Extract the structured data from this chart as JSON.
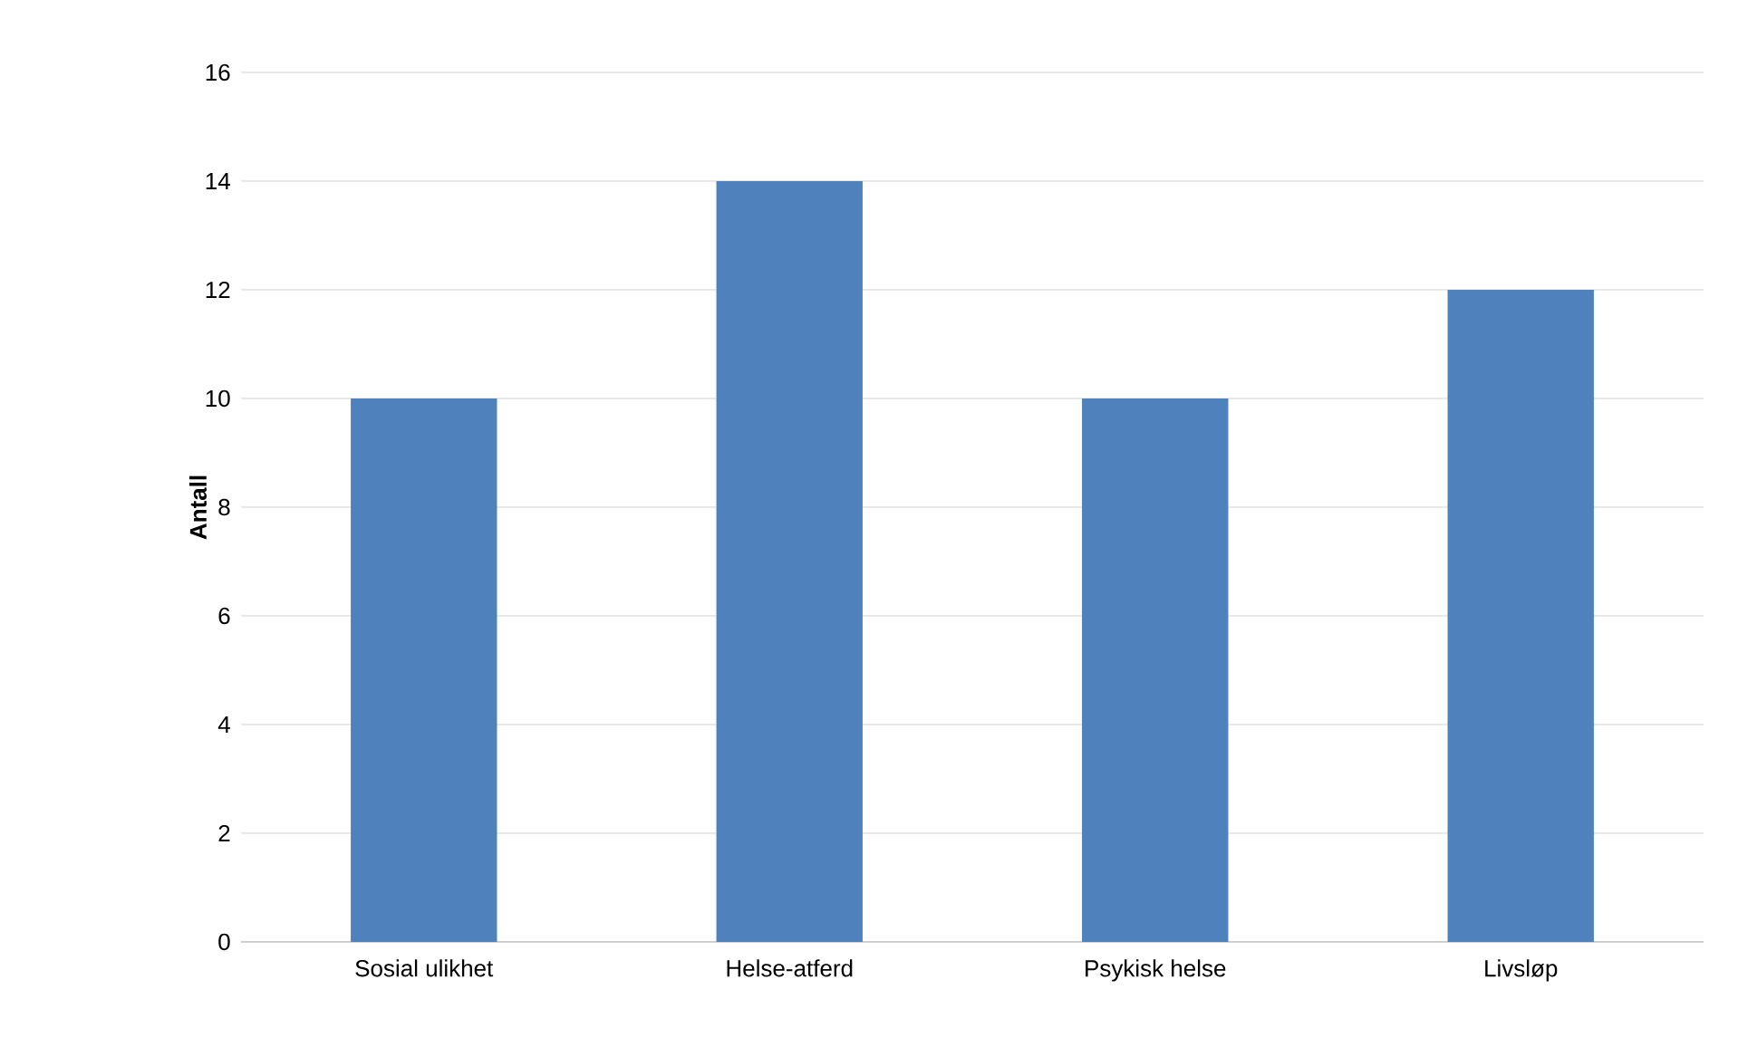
{
  "chart_data": {
    "type": "bar",
    "ylabel": "Antall",
    "categories": [
      "Sosial ulikhet",
      "Helse-atferd",
      "Psykisk helse",
      "Livsløp"
    ],
    "values": [
      10,
      14,
      10,
      12
    ],
    "color": "#4f81bd",
    "ylim": [
      0,
      16
    ],
    "yticks": [
      0,
      2,
      4,
      6,
      8,
      10,
      12,
      14,
      16
    ],
    "grid": "y"
  }
}
